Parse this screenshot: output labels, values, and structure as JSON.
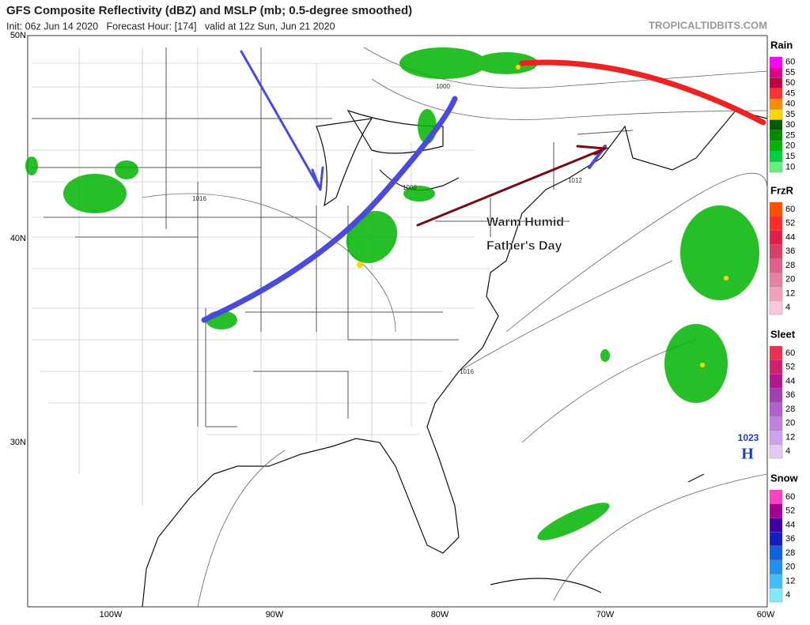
{
  "header": {
    "title": "GFS Composite Reflectivity (dBZ) and MSLP (mb; 0.5-degree smoothed)",
    "subtitle": "Init: 06z Jun 14 2020   Forecast Hour: [174]   valid at 12z Sun, Jun 21 2020",
    "source": "TROPICALTIDBITS.COM"
  },
  "map": {
    "lat_labels": [
      "50N",
      "40N",
      "30N"
    ],
    "lon_labels": [
      "100W",
      "90W",
      "80W",
      "70W",
      "60W"
    ],
    "isobar_labels": [
      "1000",
      "1008",
      "1016",
      "1012",
      "1016"
    ],
    "annotations": [
      "Warm Humid",
      "Father's Day"
    ],
    "high": {
      "pressure": "1023",
      "label": "H"
    }
  },
  "legends": [
    {
      "name": "Rain",
      "ticks": [
        60,
        55,
        50,
        45,
        40,
        35,
        30,
        25,
        20,
        15,
        10
      ],
      "colors": [
        "#ff00ff",
        "#e0008c",
        "#c00040",
        "#ff3030",
        "#ff8c00",
        "#ffd700",
        "#005a00",
        "#008c00",
        "#00b400",
        "#00d23c",
        "#64f07a"
      ]
    },
    {
      "name": "FrzR",
      "ticks": [
        60,
        52,
        44,
        36,
        28,
        20,
        12,
        4
      ],
      "colors": [
        "#ff5000",
        "#ff2a2a",
        "#e0204a",
        "#d8406a",
        "#e0608a",
        "#ea80a4",
        "#f2a0be",
        "#fac8dc"
      ]
    },
    {
      "name": "Sleet",
      "ticks": [
        60,
        52,
        44,
        36,
        28,
        20,
        12,
        4
      ],
      "colors": [
        "#e83050",
        "#d02070",
        "#b01890",
        "#a040b0",
        "#b060d0",
        "#c080e0",
        "#d0a0ee",
        "#e4c8f8"
      ]
    },
    {
      "name": "Snow",
      "ticks": [
        60,
        52,
        44,
        36,
        28,
        20,
        12,
        4
      ],
      "colors": [
        "#ff40c0",
        "#a00090",
        "#4000a0",
        "#1020c0",
        "#1060e0",
        "#2090f0",
        "#40c0f8",
        "#80e8ff"
      ]
    }
  ]
}
